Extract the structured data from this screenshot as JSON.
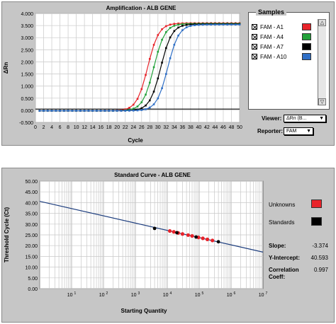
{
  "colors": {
    "red": "#e8232a",
    "green": "#22a13a",
    "black": "#000000",
    "blue": "#2f6fc6",
    "line": "#1f3f7f"
  },
  "amplification": {
    "title": "Amplification - ALB GENE",
    "xlabel": "Cycle",
    "ylabel": "ΔRn",
    "yticks": [
      "4.000",
      "3.500",
      "3.000",
      "2.500",
      "2.000",
      "1.500",
      "1.000",
      "0.500",
      "0.000",
      "-0.500"
    ],
    "xticks": [
      "0",
      "2",
      "4",
      "6",
      "8",
      "10",
      "12",
      "14",
      "16",
      "18",
      "20",
      "22",
      "24",
      "26",
      "28",
      "30",
      "32",
      "34",
      "36",
      "38",
      "40",
      "42",
      "44",
      "46",
      "48",
      "50"
    ],
    "samples_title": "Samples",
    "samples": [
      {
        "label": "FAM - A1",
        "color": "#e8232a"
      },
      {
        "label": "FAM - A4",
        "color": "#22a13a"
      },
      {
        "label": "FAM - A7",
        "color": "#000000"
      },
      {
        "label": "FAM - A10",
        "color": "#2f6fc6"
      }
    ],
    "viewer_label": "Viewer:",
    "viewer_value": "ΔRn (B...",
    "reporter_label": "Reporter:",
    "reporter_value": "FAM"
  },
  "standard": {
    "title": "Standard Curve - ALB GENE",
    "xlabel": "Starting Quantity",
    "ylabel": "Threshold Cycle (Ct)",
    "yticks": [
      "50.00",
      "45.00",
      "40.00",
      "35.00",
      "30.00",
      "25.00",
      "20.00",
      "15.00",
      "10.00",
      "5.00",
      "0.00"
    ],
    "xticks": [
      "10 1",
      "10 2",
      "10 3",
      "10 4",
      "10 5",
      "10 6",
      "10 7"
    ],
    "unknowns_label": "Unknowns",
    "standards_label": "Standards",
    "slope_label": "Slope:",
    "slope_value": "-3.374",
    "intercept_label": "Y-Intercept:",
    "intercept_value": "40.593",
    "corr_label": "Correlation",
    "corr_label2": "Coeff:",
    "corr_value": "0.997"
  },
  "chart_data": [
    {
      "type": "line",
      "title": "Amplification - ALB GENE",
      "xlabel": "Cycle",
      "ylabel": "ΔRn",
      "xlim": [
        0,
        50
      ],
      "ylim": [
        -0.5,
        4.0
      ],
      "series": [
        {
          "name": "FAM - A1",
          "color": "#e8232a",
          "ct": 27.5,
          "plateau": 3.62
        },
        {
          "name": "FAM - A4",
          "color": "#22a13a",
          "ct": 29.0,
          "plateau": 3.6
        },
        {
          "name": "FAM - A7",
          "color": "#000000",
          "ct": 30.7,
          "plateau": 3.58
        },
        {
          "name": "FAM - A10",
          "color": "#2f6fc6",
          "ct": 32.4,
          "plateau": 3.56
        }
      ]
    },
    {
      "type": "scatter",
      "title": "Standard Curve - ALB GENE",
      "xlabel": "Starting Quantity",
      "ylabel": "Threshold Cycle (Ct)",
      "xscale": "log",
      "xlim": [
        1,
        10000000
      ],
      "ylim": [
        0,
        50
      ],
      "slope": -3.374,
      "intercept": 40.593,
      "standards": [
        [
          4000,
          28.0
        ],
        [
          20000,
          26.0
        ],
        [
          80000,
          24.0
        ],
        [
          400000,
          21.8
        ]
      ],
      "unknowns": [
        [
          12000,
          26.8
        ],
        [
          16000,
          26.4
        ],
        [
          22000,
          25.9
        ],
        [
          30000,
          25.4
        ],
        [
          45000,
          24.9
        ],
        [
          60000,
          24.5
        ],
        [
          95000,
          23.8
        ],
        [
          130000,
          23.4
        ],
        [
          180000,
          22.9
        ],
        [
          260000,
          22.4
        ]
      ]
    }
  ]
}
